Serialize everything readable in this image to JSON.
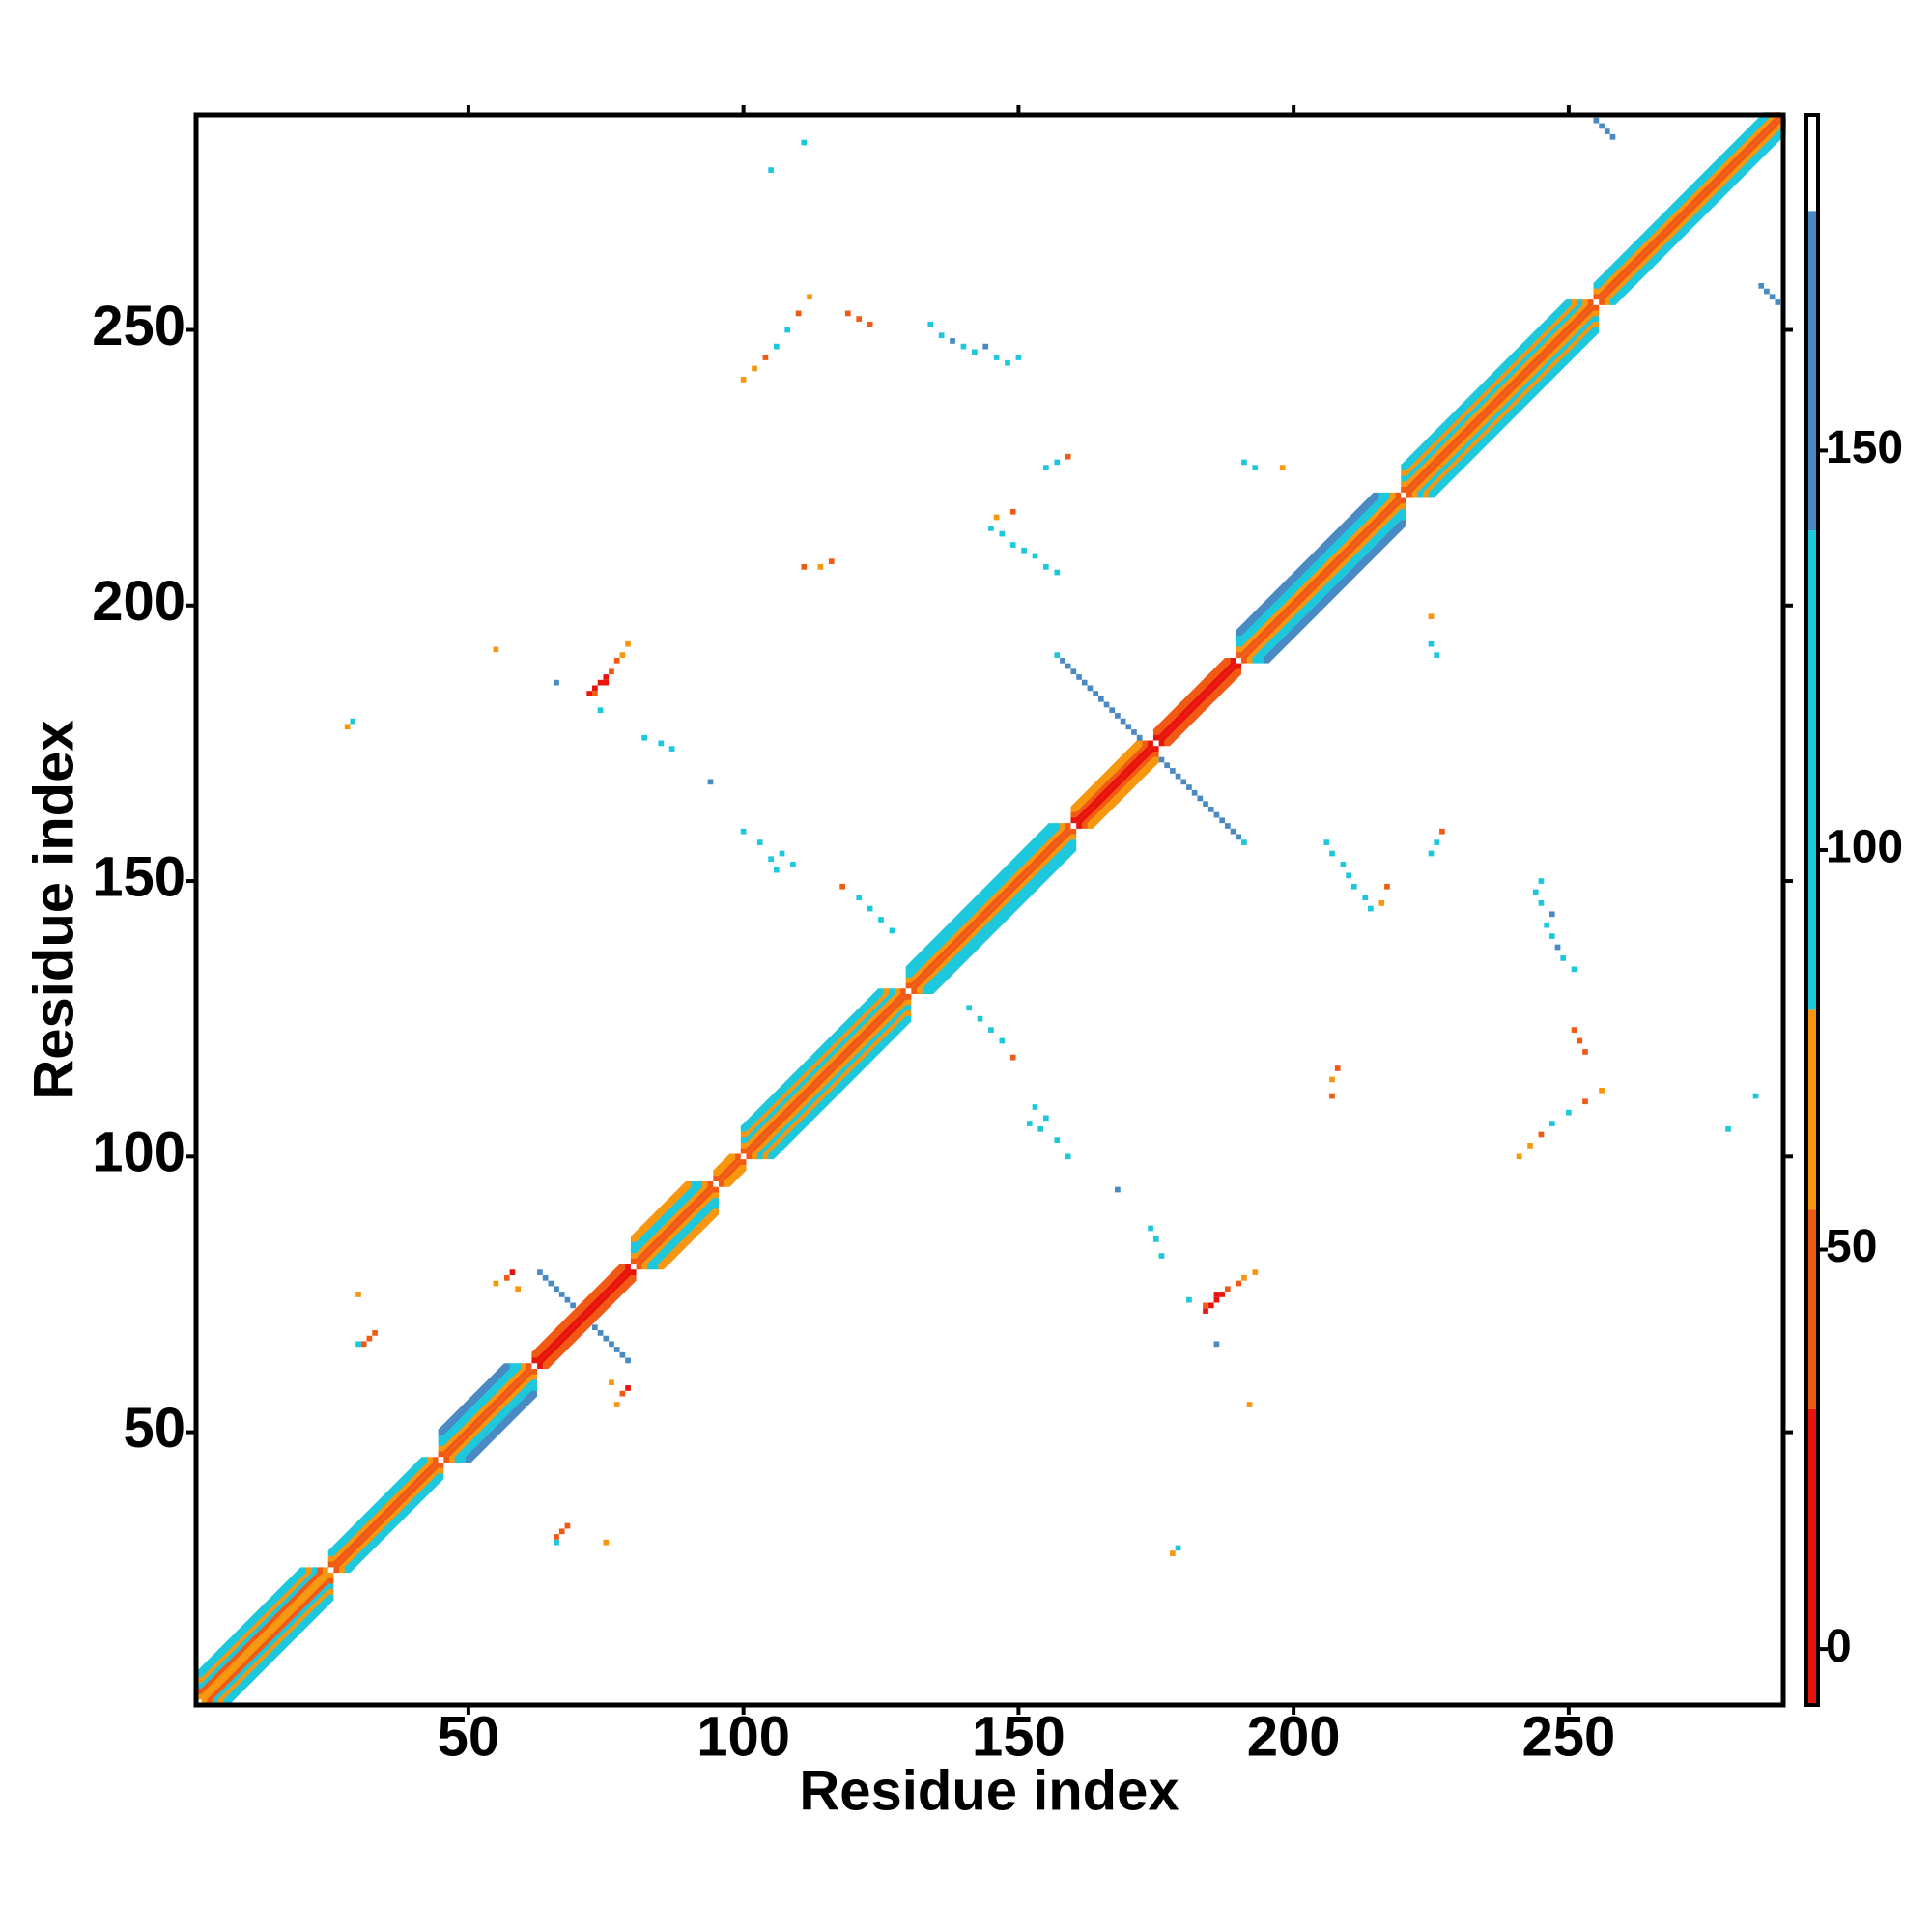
{
  "chart_data": {
    "type": "heatmap",
    "xlabel": "Residue index",
    "ylabel": "Residue index",
    "xlim": [
      0.5,
      289
    ],
    "ylim": [
      0.5,
      289
    ],
    "xticks": [
      50,
      100,
      150,
      200,
      250
    ],
    "yticks": [
      50,
      100,
      150,
      200,
      250
    ],
    "symmetric": true,
    "diagonal": [
      {
        "from": 1,
        "to": 25,
        "values": [
          60,
          40,
          100,
          60,
          100
        ]
      },
      {
        "from": 25,
        "to": 45,
        "values": [
          40,
          60,
          100
        ]
      },
      {
        "from": 45,
        "to": 62,
        "values": [
          40,
          60,
          100,
          100,
          150
        ]
      },
      {
        "from": 62,
        "to": 80,
        "values": [
          20,
          40
        ]
      },
      {
        "from": 80,
        "to": 95,
        "values": [
          40,
          60,
          100,
          100,
          60
        ]
      },
      {
        "from": 95,
        "to": 100,
        "values": [
          40,
          60
        ]
      },
      {
        "from": 100,
        "to": 130,
        "values": [
          40,
          60,
          100,
          60,
          100
        ]
      },
      {
        "from": 130,
        "to": 160,
        "values": [
          40,
          60,
          100,
          100
        ]
      },
      {
        "from": 160,
        "to": 175,
        "values": [
          20,
          40,
          60
        ]
      },
      {
        "from": 175,
        "to": 190,
        "values": [
          20,
          40
        ]
      },
      {
        "from": 190,
        "to": 220,
        "values": [
          40,
          60,
          100,
          100,
          150
        ]
      },
      {
        "from": 220,
        "to": 255,
        "values": [
          40,
          60,
          100,
          60,
          100
        ]
      },
      {
        "from": 255,
        "to": 289,
        "values": [
          40,
          60,
          100
        ]
      }
    ],
    "x": [
      72,
      73,
      74,
      75,
      76,
      77,
      78,
      79,
      73,
      75,
      63,
      64,
      65,
      66,
      67,
      68,
      69,
      157,
      158,
      159,
      160,
      161,
      162,
      163,
      164,
      165,
      166,
      167,
      168,
      169,
      170,
      171,
      172,
      255,
      256,
      257,
      258,
      134,
      136,
      138,
      140,
      142,
      144,
      146,
      148,
      150,
      100,
      102,
      104,
      106,
      108,
      110,
      112,
      119,
      121,
      123,
      105,
      111,
      145,
      147,
      149,
      151,
      153,
      155,
      157,
      146,
      149,
      155,
      157,
      159,
      111,
      114,
      116,
      100,
      103,
      105,
      107,
      109,
      106,
      118,
      121,
      123,
      125,
      127,
      94,
      82,
      85,
      87,
      66,
      74,
      28,
      29,
      55,
      191,
      193,
      198,
      31,
      32,
      33,
      30,
      30,
      55,
      57,
      58,
      59
    ],
    "y": [
      184,
      185,
      186,
      187,
      188,
      190,
      191,
      193,
      184,
      186,
      79,
      78,
      77,
      76,
      75,
      74,
      73,
      191,
      190,
      189,
      188,
      187,
      186,
      185,
      184,
      183,
      182,
      181,
      180,
      179,
      178,
      177,
      176,
      288,
      287,
      286,
      285,
      251,
      249,
      248,
      247,
      246,
      247,
      245,
      244,
      245,
      241,
      243,
      245,
      247,
      250,
      253,
      256,
      253,
      252,
      251,
      279,
      284,
      214,
      213,
      211,
      210,
      209,
      207,
      206,
      216,
      217,
      225,
      226,
      227,
      207,
      207,
      208,
      159,
      157,
      154,
      155,
      153,
      152,
      149,
      147,
      145,
      143,
      141,
      168,
      176,
      175,
      174,
      186,
      181,
      178,
      179,
      192,
      226,
      225,
      225,
      66,
      67,
      68,
      66,
      75,
      77,
      78,
      79,
      76
    ],
    "values": [
      20,
      10,
      10,
      20,
      40,
      40,
      60,
      60,
      40,
      20,
      150,
      150,
      150,
      150,
      150,
      150,
      150,
      100,
      150,
      150,
      150,
      150,
      150,
      150,
      150,
      150,
      150,
      150,
      150,
      150,
      150,
      150,
      150,
      150,
      150,
      150,
      150,
      100,
      100,
      150,
      100,
      100,
      150,
      100,
      100,
      100,
      60,
      60,
      40,
      100,
      100,
      40,
      60,
      40,
      40,
      30,
      100,
      100,
      100,
      100,
      100,
      100,
      100,
      100,
      100,
      60,
      40,
      100,
      100,
      40,
      40,
      60,
      40,
      100,
      100,
      100,
      100,
      100,
      100,
      40,
      100,
      100,
      100,
      100,
      150,
      100,
      100,
      100,
      150,
      100,
      60,
      100,
      60,
      100,
      100,
      60,
      40,
      40,
      40,
      100,
      60,
      60,
      40,
      20,
      60
    ],
    "colorbar": {
      "lim": [
        -7,
        192
      ],
      "ticks": [
        0,
        50,
        100,
        150
      ],
      "bounds": [
        -7,
        30,
        55,
        80,
        140,
        180,
        192
      ],
      "colors": [
        "#e8140c",
        "#f05a14",
        "#f7960f",
        "#1ec8dc",
        "#4a8ac4",
        "#ffffff"
      ]
    }
  }
}
